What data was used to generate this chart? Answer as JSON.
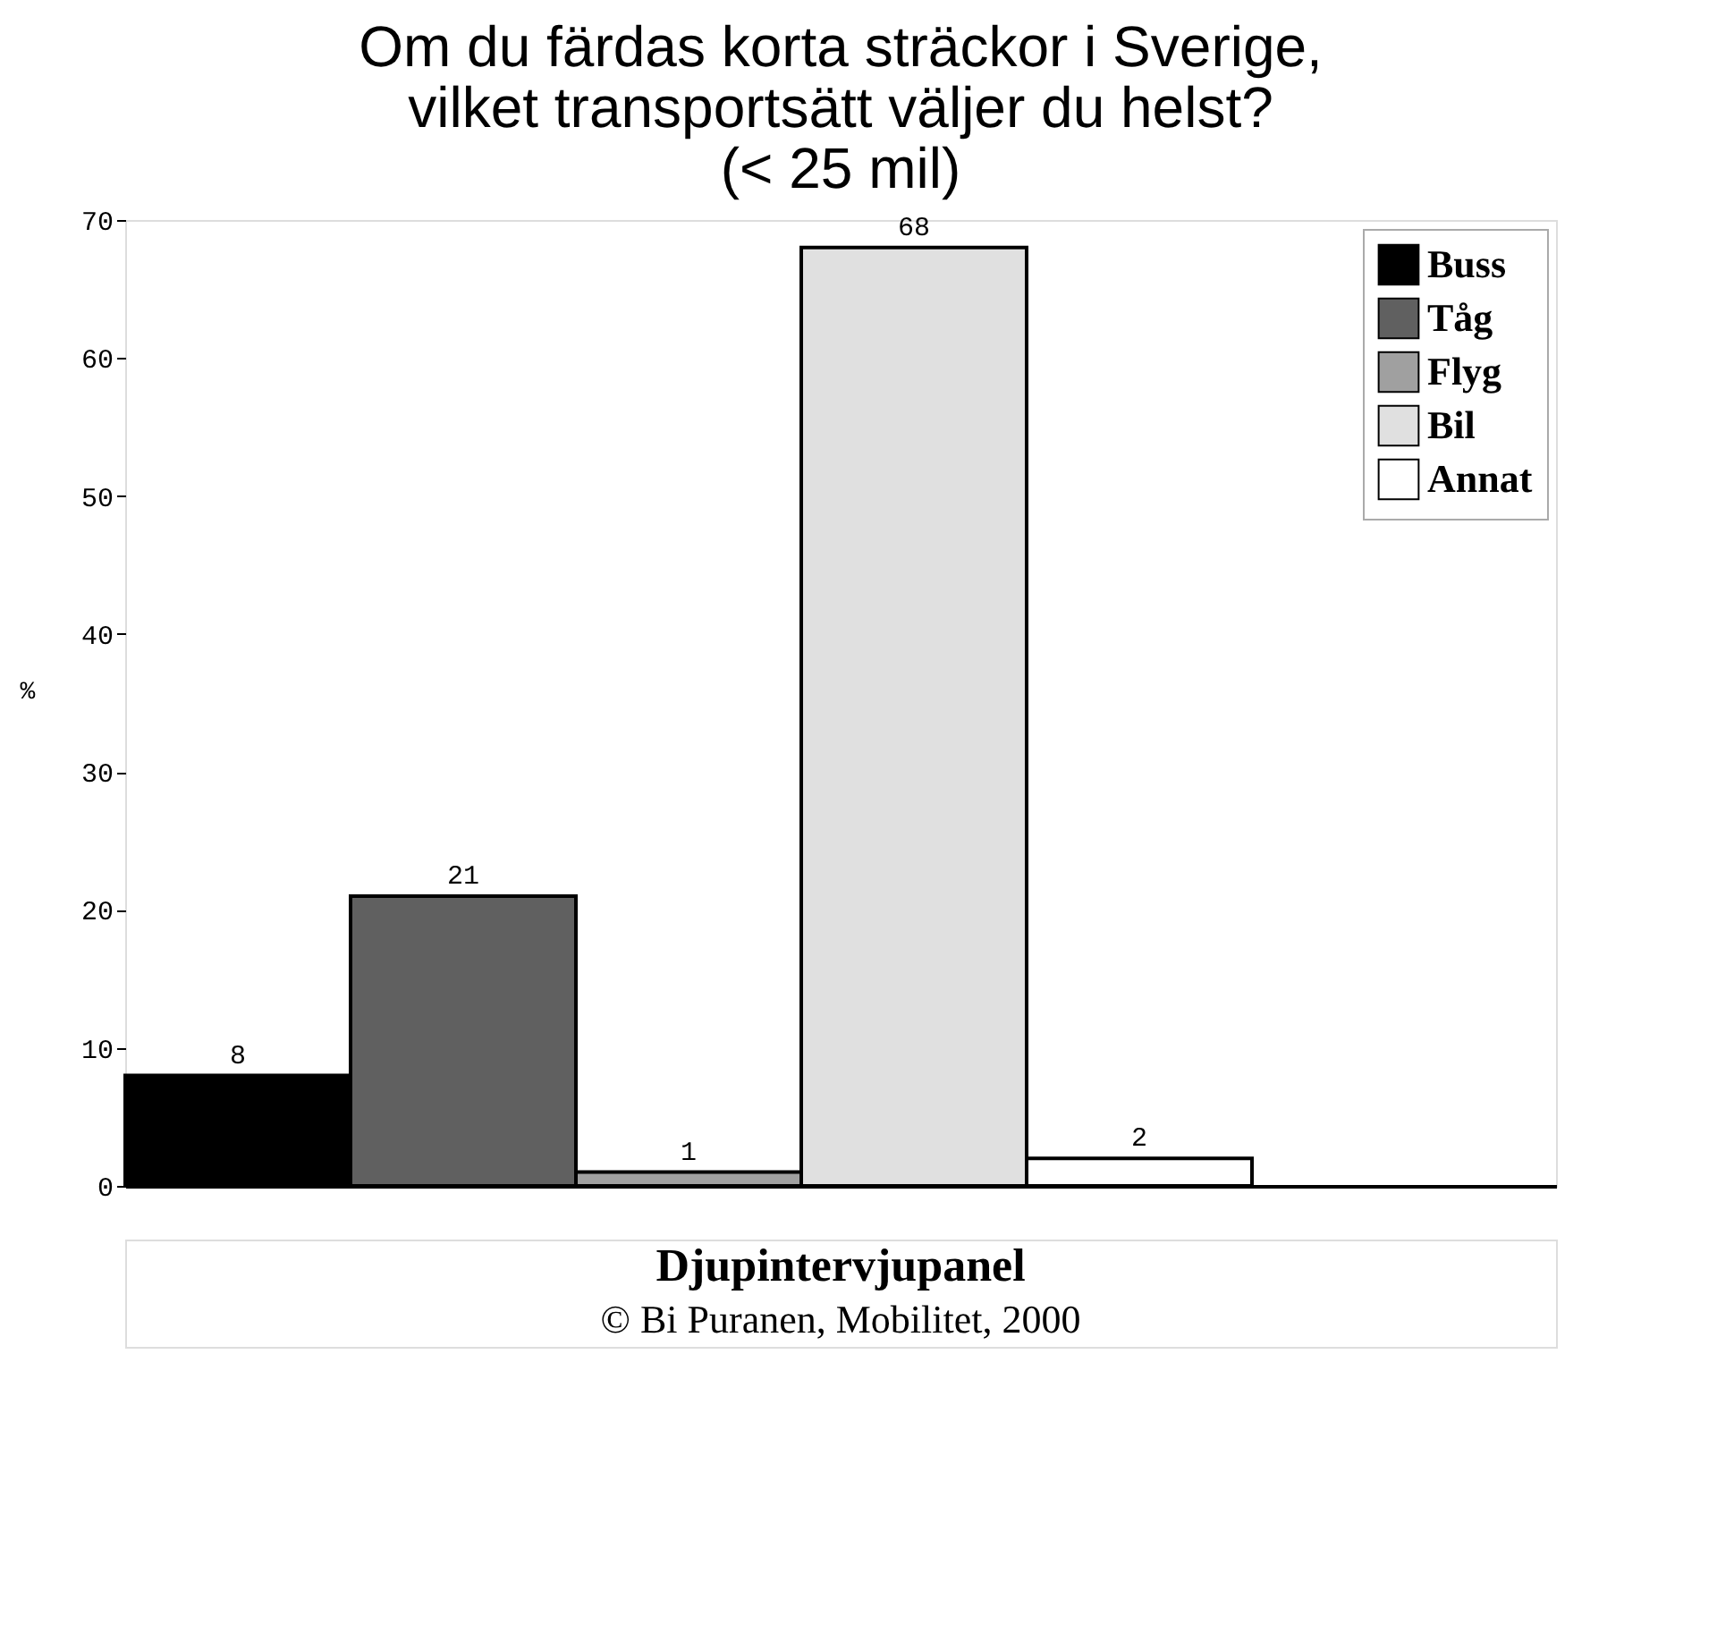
{
  "chart_data": {
    "type": "bar",
    "title": [
      "Om du färdas korta sträckor i Sverige,",
      "vilket transportsätt väljer du helst?",
      "(< 25 mil)"
    ],
    "ylabel": "%",
    "categories": [
      null
    ],
    "series": [
      {
        "name": "Buss",
        "color": "#000000",
        "values": [
          8
        ]
      },
      {
        "name": "Tåg",
        "color": "#606060",
        "values": [
          21
        ]
      },
      {
        "name": "Flyg",
        "color": "#a0a0a0",
        "values": [
          1
        ]
      },
      {
        "name": "Bil",
        "color": "#e0e0e0",
        "values": [
          68
        ]
      },
      {
        "name": "Annat",
        "color": "#ffffff",
        "values": [
          2
        ]
      }
    ],
    "ylim": [
      0,
      70
    ],
    "yticks": [
      0,
      10,
      20,
      30,
      40,
      50,
      60,
      70
    ],
    "data_labels": true,
    "legend": "top right",
    "grid": false,
    "annotations": [
      "Djupintervjupanel",
      "© Bi Puranen, Mobilitet, 2000"
    ]
  }
}
